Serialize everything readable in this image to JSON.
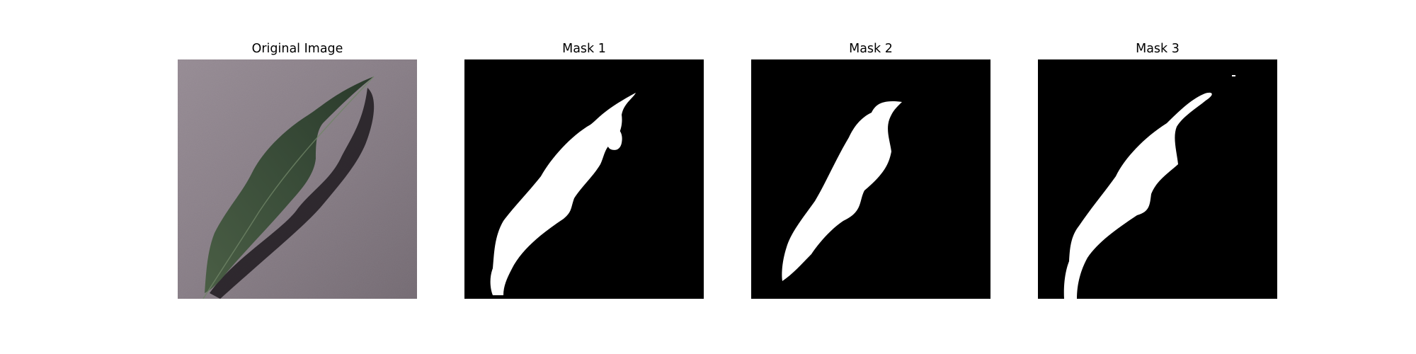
{
  "figure": {
    "panels": [
      {
        "title": "Original Image",
        "kind": "photo",
        "subject": "leaf-on-gray-surface"
      },
      {
        "title": "Mask 1",
        "kind": "mask"
      },
      {
        "title": "Mask 2",
        "kind": "mask"
      },
      {
        "title": "Mask 3",
        "kind": "mask"
      }
    ],
    "colors": {
      "background": "#ffffff",
      "mask_background": "#000000",
      "mask_foreground": "#ffffff",
      "surface": "#8a8088",
      "leaf": "#3a5038",
      "shadow": "#1e1a1e"
    }
  }
}
